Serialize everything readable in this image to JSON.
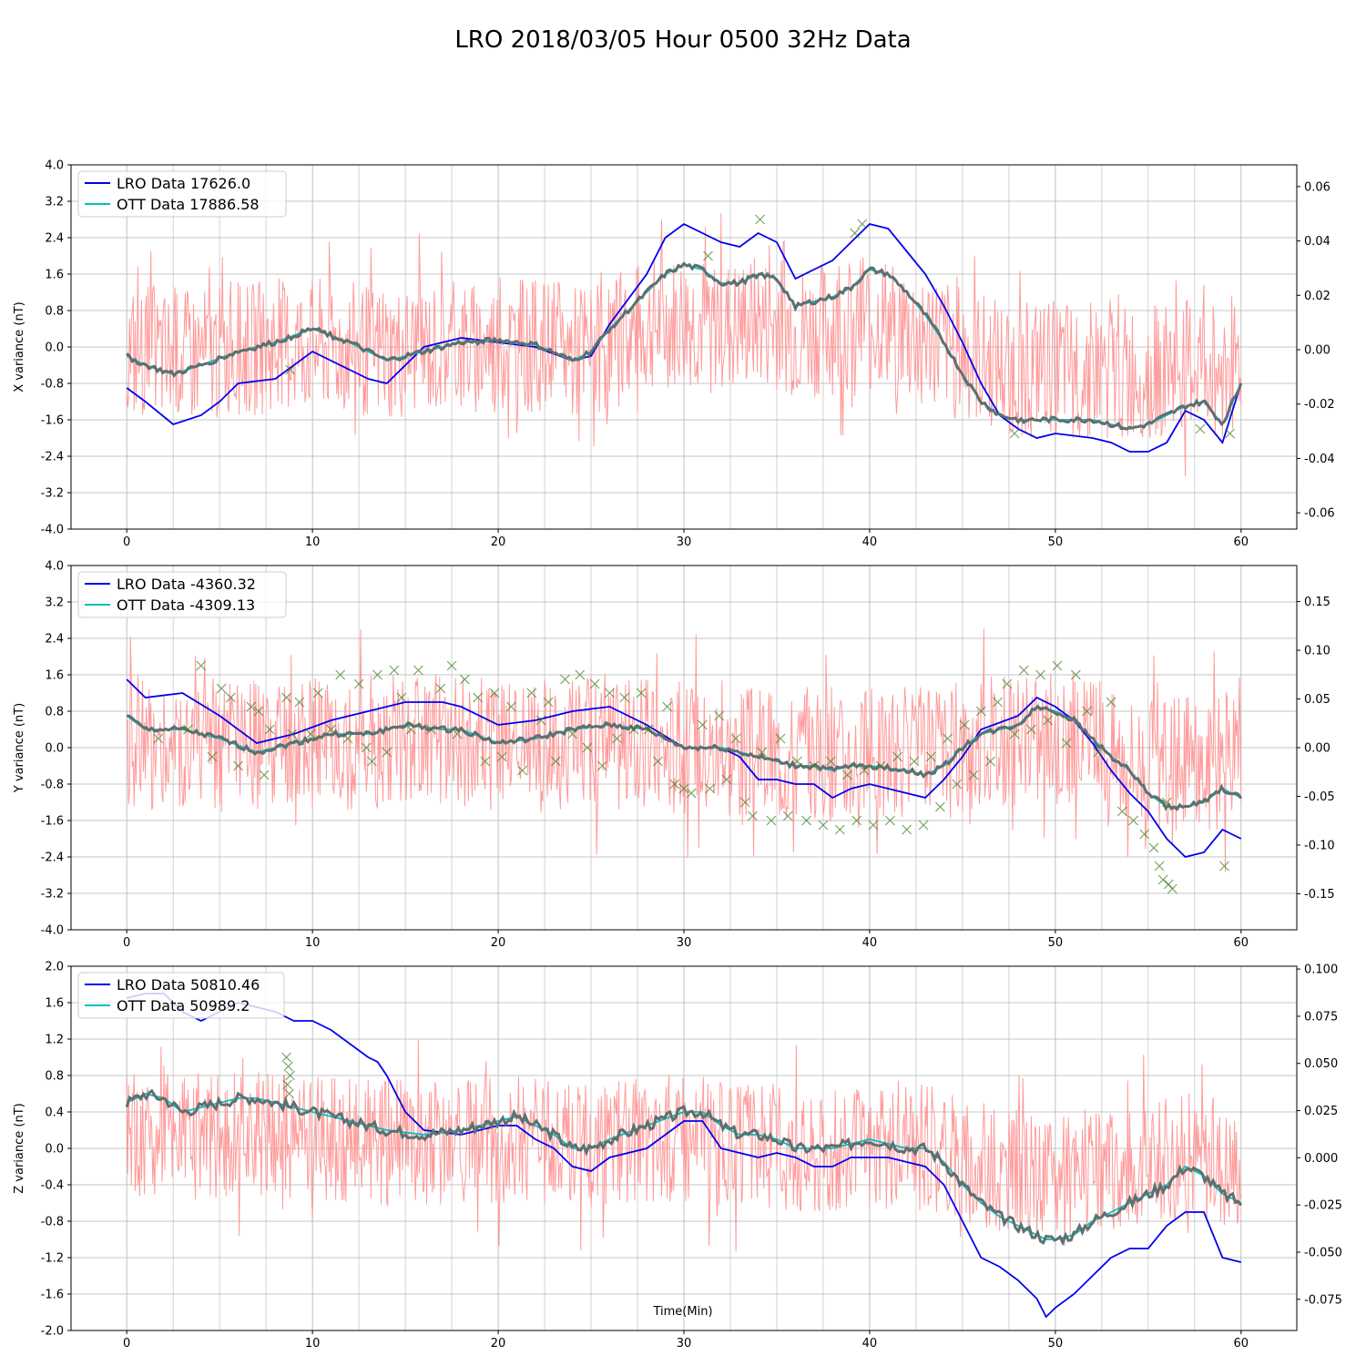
{
  "figure": {
    "title": "LRO 2018/03/05 Hour 0500 32Hz Data",
    "xlabel": "Time(Min)"
  },
  "colors": {
    "lro": "#0000ee",
    "ott": "#00bfbf",
    "noise": "#ff9696",
    "smooth": "#5f6f6f",
    "marker": "#3c7d1e"
  },
  "chart_data": [
    {
      "type": "line",
      "panel": "x",
      "ylabel": "X variance (nT)",
      "xlim": [
        -3,
        63
      ],
      "ylim": [
        -4.0,
        4.0
      ],
      "right_ylim": [
        -0.066,
        0.068
      ],
      "xticks": [
        0,
        10,
        20,
        30,
        40,
        50,
        60
      ],
      "yticks": [
        -4.0,
        -3.2,
        -2.4,
        -1.6,
        -0.8,
        0.0,
        0.8,
        1.6,
        2.4,
        3.2,
        4.0
      ],
      "right_yticks": [
        -0.06,
        -0.04,
        -0.02,
        0.0,
        0.02,
        0.04,
        0.06
      ],
      "legend": [
        "LRO Data 17626.0",
        "OTT Data 17886.58"
      ],
      "legend_position": "upper-left",
      "grid": true,
      "series": [
        {
          "name": "LRO Data 17626.0",
          "x": [
            0,
            1,
            2.5,
            4,
            5,
            6,
            8,
            10,
            12,
            13,
            14,
            15,
            16,
            18,
            20,
            22,
            24,
            25,
            26,
            28,
            29,
            30,
            31,
            32,
            33,
            34,
            35,
            36,
            37,
            38,
            39,
            40,
            41,
            42,
            43,
            44,
            45,
            46,
            47,
            48,
            49,
            50,
            52,
            53,
            54,
            55,
            56,
            57,
            58,
            59,
            60
          ],
          "y": [
            -0.9,
            -1.2,
            -1.7,
            -1.5,
            -1.2,
            -0.8,
            -0.7,
            -0.1,
            -0.5,
            -0.7,
            -0.8,
            -0.4,
            0.0,
            0.2,
            0.1,
            0.0,
            -0.3,
            -0.2,
            0.5,
            1.6,
            2.4,
            2.7,
            2.5,
            2.3,
            2.2,
            2.5,
            2.3,
            1.5,
            1.7,
            1.9,
            2.3,
            2.7,
            2.6,
            2.1,
            1.6,
            0.9,
            0.1,
            -0.8,
            -1.5,
            -1.8,
            -2.0,
            -1.9,
            -2.0,
            -2.1,
            -2.3,
            -2.3,
            -2.1,
            -1.4,
            -1.6,
            -2.1,
            -0.8
          ]
        },
        {
          "name": "OTT Data 17886.58",
          "x": [
            0,
            1,
            2.5,
            4,
            6,
            8,
            10,
            12,
            14,
            16,
            18,
            20,
            22,
            24,
            25,
            26,
            28,
            29,
            30,
            31,
            32,
            33,
            34,
            35,
            36,
            37,
            38,
            39,
            40,
            41,
            42,
            43,
            44,
            45,
            46,
            47,
            48,
            50,
            52,
            54,
            55,
            56,
            57,
            58,
            59,
            60
          ],
          "y": [
            -0.2,
            -0.4,
            -0.6,
            -0.4,
            -0.1,
            0.1,
            0.4,
            0.1,
            -0.3,
            -0.1,
            0.1,
            0.15,
            0.05,
            -0.3,
            -0.1,
            0.4,
            1.2,
            1.6,
            1.8,
            1.7,
            1.4,
            1.4,
            1.6,
            1.5,
            0.9,
            1.0,
            1.1,
            1.3,
            1.7,
            1.6,
            1.2,
            0.7,
            0.1,
            -0.6,
            -1.2,
            -1.5,
            -1.6,
            -1.6,
            -1.6,
            -1.8,
            -1.7,
            -1.5,
            -1.3,
            -1.2,
            -1.7,
            -0.8
          ]
        }
      ],
      "markers": {
        "x": [
          8.8,
          31.3,
          34.1,
          39.2,
          39.6,
          47.8,
          57.8,
          59.4
        ],
        "y": [
          -0.5,
          2.0,
          2.8,
          2.5,
          2.7,
          -1.9,
          -1.8,
          -1.9
        ]
      }
    },
    {
      "type": "line",
      "panel": "y",
      "ylabel": "Y variance (nT)",
      "xlim": [
        -3,
        63
      ],
      "ylim": [
        -4.0,
        4.0
      ],
      "right_ylim": [
        -0.187,
        0.187
      ],
      "xticks": [
        0,
        10,
        20,
        30,
        40,
        50,
        60
      ],
      "yticks": [
        -4.0,
        -3.2,
        -2.4,
        -1.6,
        -0.8,
        0.0,
        0.8,
        1.6,
        2.4,
        3.2,
        4.0
      ],
      "right_yticks": [
        -0.15,
        -0.1,
        -0.05,
        0.0,
        0.05,
        0.1,
        0.15
      ],
      "legend": [
        "LRO Data -4360.32",
        "OTT Data -4309.13"
      ],
      "legend_position": "upper-left",
      "grid": true,
      "series": [
        {
          "name": "LRO Data -4360.32",
          "x": [
            0,
            1,
            3,
            5,
            7,
            9,
            11,
            13,
            15,
            17,
            18,
            20,
            22,
            24,
            26,
            28,
            30,
            32,
            33,
            34,
            35,
            36,
            37,
            38,
            39,
            40,
            42,
            43,
            44,
            45,
            46,
            48,
            49,
            50,
            51,
            52,
            53,
            54,
            55,
            56,
            57,
            58,
            59,
            60
          ],
          "y": [
            1.5,
            1.1,
            1.2,
            0.7,
            0.1,
            0.3,
            0.6,
            0.8,
            1.0,
            1.0,
            0.9,
            0.5,
            0.6,
            0.8,
            0.9,
            0.5,
            0.0,
            0.0,
            -0.2,
            -0.7,
            -0.7,
            -0.8,
            -0.8,
            -1.1,
            -0.9,
            -0.8,
            -1.0,
            -1.1,
            -0.7,
            -0.2,
            0.4,
            0.7,
            1.1,
            0.9,
            0.6,
            0.1,
            -0.5,
            -1.0,
            -1.4,
            -2.0,
            -2.4,
            -2.3,
            -1.8,
            -2.0
          ]
        },
        {
          "name": "OTT Data -4309.13",
          "x": [
            0,
            1,
            3,
            5,
            7,
            9,
            11,
            13,
            15,
            17,
            18,
            20,
            22,
            24,
            26,
            28,
            30,
            32,
            33,
            34,
            35,
            36,
            37,
            38,
            39,
            40,
            42,
            43,
            44,
            45,
            46,
            48,
            49,
            50,
            51,
            52,
            53,
            54,
            55,
            56,
            57,
            58,
            59,
            60
          ],
          "y": [
            0.7,
            0.4,
            0.4,
            0.2,
            -0.1,
            0.1,
            0.3,
            0.3,
            0.5,
            0.4,
            0.4,
            0.1,
            0.2,
            0.4,
            0.5,
            0.4,
            0.0,
            0.0,
            -0.1,
            -0.2,
            -0.3,
            -0.4,
            -0.4,
            -0.5,
            -0.4,
            -0.4,
            -0.5,
            -0.6,
            -0.4,
            0.0,
            0.3,
            0.5,
            0.9,
            0.8,
            0.6,
            0.2,
            -0.2,
            -0.5,
            -1.0,
            -1.3,
            -1.3,
            -1.2,
            -0.9,
            -1.1
          ]
        }
      ],
      "markers": {
        "x": [
          1.7,
          3.3,
          4.0,
          4.6,
          5.1,
          5.6,
          6.0,
          6.7,
          7.1,
          7.4,
          7.7,
          8.6,
          8.9,
          9.3,
          9.9,
          10.3,
          11.0,
          11.5,
          11.9,
          12.5,
          12.9,
          13.2,
          13.5,
          14.0,
          14.4,
          14.8,
          15.3,
          15.7,
          16.4,
          16.9,
          17.5,
          17.8,
          18.2,
          18.9,
          19.3,
          19.8,
          20.2,
          20.7,
          21.3,
          21.8,
          22.3,
          22.7,
          23.1,
          23.6,
          24.0,
          24.4,
          24.8,
          25.2,
          25.6,
          26.0,
          26.4,
          26.8,
          27.3,
          27.7,
          28.1,
          28.6,
          29.1,
          29.5,
          30.0,
          30.4,
          31.0,
          31.4,
          31.9,
          32.3,
          32.8,
          33.3,
          33.7,
          34.2,
          34.7,
          35.2,
          35.6,
          36.1,
          36.6,
          37.0,
          37.5,
          37.9,
          38.4,
          38.8,
          39.3,
          39.7,
          40.2,
          40.6,
          41.1,
          41.5,
          42.0,
          42.4,
          42.9,
          43.3,
          43.8,
          44.2,
          44.7,
          45.1,
          45.6,
          46.0,
          46.5,
          46.9,
          47.4,
          47.8,
          48.3,
          48.7,
          49.2,
          49.6,
          50.1,
          50.6,
          51.1,
          51.7,
          52.3,
          53.0,
          53.6,
          54.2,
          54.8,
          55.3,
          55.6,
          55.8,
          56.0,
          56.1,
          56.3,
          59.1
        ],
        "y": [
          0.2,
          0.4,
          1.8,
          -0.2,
          1.3,
          1.1,
          -0.4,
          0.9,
          0.8,
          -0.6,
          0.4,
          1.1,
          0.3,
          1.0,
          0.3,
          1.2,
          0.4,
          1.6,
          0.2,
          1.4,
          0.0,
          -0.3,
          1.6,
          -0.1,
          1.7,
          1.1,
          0.4,
          1.7,
          0.4,
          1.3,
          1.8,
          0.3,
          1.5,
          1.1,
          -0.3,
          1.2,
          -0.2,
          0.9,
          -0.5,
          1.2,
          0.6,
          1.0,
          -0.3,
          1.5,
          0.3,
          1.6,
          0.0,
          1.4,
          -0.4,
          1.2,
          0.2,
          1.1,
          0.4,
          1.2,
          0.4,
          -0.3,
          0.9,
          -0.8,
          -0.9,
          -1.0,
          0.5,
          -0.9,
          0.7,
          -0.7,
          0.2,
          -1.2,
          -1.5,
          -0.1,
          -1.6,
          0.2,
          -1.5,
          -0.3,
          -1.6,
          -0.4,
          -1.7,
          -0.3,
          -1.8,
          -0.6,
          -1.6,
          -0.5,
          -1.7,
          -0.4,
          -1.6,
          -0.2,
          -1.8,
          -0.3,
          -1.7,
          -0.2,
          -1.3,
          0.2,
          -0.8,
          0.5,
          -0.6,
          0.8,
          -0.3,
          1.0,
          1.4,
          0.3,
          1.7,
          0.4,
          1.6,
          0.6,
          1.8,
          0.1,
          1.6,
          0.8,
          -0.1,
          1.0,
          -1.4,
          -1.6,
          -1.9,
          -2.2,
          -2.6,
          -2.9,
          -1.2,
          -3.0,
          -3.1,
          -2.6
        ]
      }
    },
    {
      "type": "line",
      "panel": "z",
      "ylabel": "Z variance (nT)",
      "xlim": [
        -3,
        63
      ],
      "ylim": [
        -2.0,
        2.0
      ],
      "right_ylim": [
        -0.0915,
        0.1015
      ],
      "xticks": [
        0,
        10,
        20,
        30,
        40,
        50,
        60
      ],
      "yticks": [
        -2.0,
        -1.6,
        -1.2,
        -0.8,
        -0.4,
        0.0,
        0.4,
        0.8,
        1.2,
        1.6,
        2.0
      ],
      "right_yticks": [
        -0.075,
        -0.05,
        -0.025,
        0.0,
        0.025,
        0.05,
        0.075,
        0.1
      ],
      "legend": [
        "LRO Data 50810.46",
        "OTT Data 50989.2"
      ],
      "legend_position": "upper-left",
      "grid": true,
      "series": [
        {
          "name": "LRO Data 50810.46",
          "x": [
            0,
            1,
            2,
            3,
            4,
            5,
            6,
            7,
            8,
            9,
            10,
            11,
            12,
            13,
            13.5,
            14,
            15,
            16,
            18,
            20,
            21,
            22,
            23,
            24,
            25,
            26,
            28,
            30,
            31,
            32,
            33,
            34,
            35,
            36,
            37,
            38,
            39,
            40,
            41,
            42,
            43,
            44,
            45,
            46,
            47,
            48,
            49,
            49.5,
            50,
            51,
            52,
            53,
            54,
            55,
            56,
            57,
            58,
            59,
            60
          ],
          "y": [
            1.65,
            1.7,
            1.7,
            1.5,
            1.4,
            1.5,
            1.6,
            1.55,
            1.5,
            1.4,
            1.4,
            1.3,
            1.15,
            1.0,
            0.95,
            0.8,
            0.4,
            0.2,
            0.15,
            0.25,
            0.25,
            0.1,
            0.0,
            -0.2,
            -0.25,
            -0.1,
            0.0,
            0.3,
            0.3,
            0.0,
            -0.05,
            -0.1,
            -0.05,
            -0.1,
            -0.2,
            -0.2,
            -0.1,
            -0.1,
            -0.1,
            -0.15,
            -0.2,
            -0.4,
            -0.8,
            -1.2,
            -1.3,
            -1.45,
            -1.65,
            -1.85,
            -1.75,
            -1.6,
            -1.4,
            -1.2,
            -1.1,
            -1.1,
            -0.85,
            -0.7,
            -0.7,
            -1.2,
            -1.25
          ]
        },
        {
          "name": "OTT Data 50989.2",
          "x": [
            0,
            1,
            2,
            3,
            4,
            5,
            6,
            7,
            8,
            9,
            10,
            12,
            14,
            16,
            18,
            20,
            21,
            22,
            23,
            24,
            25,
            26,
            28,
            30,
            31,
            32,
            33,
            34,
            35,
            36,
            37,
            38,
            39,
            40,
            41,
            42,
            43,
            44,
            45,
            46,
            47,
            48,
            49,
            49.5,
            50,
            51,
            52,
            53,
            54,
            55,
            56,
            57,
            58,
            59,
            60
          ],
          "y": [
            0.5,
            0.6,
            0.55,
            0.4,
            0.45,
            0.5,
            0.55,
            0.55,
            0.5,
            0.45,
            0.4,
            0.3,
            0.2,
            0.15,
            0.2,
            0.3,
            0.35,
            0.25,
            0.15,
            0.0,
            0.0,
            0.1,
            0.25,
            0.4,
            0.4,
            0.25,
            0.15,
            0.15,
            0.1,
            0.0,
            0.0,
            0.0,
            0.05,
            0.1,
            0.05,
            0.0,
            0.0,
            -0.15,
            -0.4,
            -0.6,
            -0.75,
            -0.85,
            -0.95,
            -1.0,
            -1.0,
            -0.95,
            -0.8,
            -0.7,
            -0.6,
            -0.5,
            -0.4,
            -0.2,
            -0.3,
            -0.5,
            -0.6
          ]
        }
      ],
      "markers": {
        "x": [
          8.6,
          8.7,
          8.8,
          8.65,
          8.75
        ],
        "y": [
          1.0,
          0.9,
          0.8,
          0.7,
          0.6
        ]
      }
    }
  ]
}
